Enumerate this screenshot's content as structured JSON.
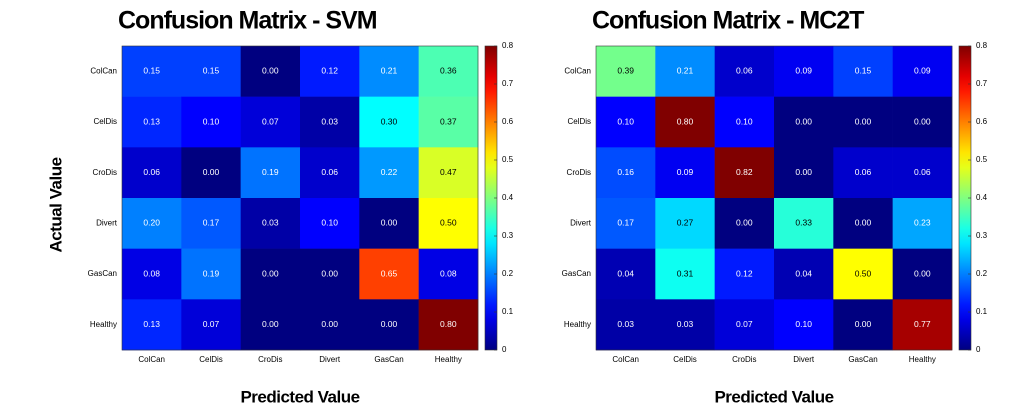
{
  "chart_data": [
    {
      "type": "heatmap",
      "title": "Confusion Matrix - SVM",
      "xlabel": "Predicted Value",
      "ylabel": "Actual Value",
      "x_categories": [
        "ColCan",
        "CelDis",
        "CroDis",
        "Divert",
        "GasCan",
        "Healthy"
      ],
      "y_categories": [
        "ColCan",
        "CelDis",
        "CroDis",
        "Divert",
        "GasCan",
        "Healthy"
      ],
      "values": [
        [
          0.15,
          0.15,
          0,
          0.12,
          0.21,
          0.36
        ],
        [
          0.13,
          0.1,
          0.07,
          0.03,
          0.3,
          0.37
        ],
        [
          0.06,
          0,
          0.19,
          0.06,
          0.22,
          0.47
        ],
        [
          0.2,
          0.17,
          0.03,
          0.1,
          0,
          0.5
        ],
        [
          0.08,
          0.19,
          0,
          0,
          0.65,
          0.08
        ],
        [
          0.13,
          0.07,
          0,
          0,
          0,
          0.8
        ]
      ],
      "value_labels": [
        [
          "0.15",
          "0.15",
          "0.00",
          "0.12",
          "0.21",
          "0.36"
        ],
        [
          "0.13",
          "0.10",
          "0.07",
          "0.03",
          "0.30",
          "0.37"
        ],
        [
          "0.06",
          "0.00",
          "0.19",
          "0.06",
          "0.22",
          "0.47"
        ],
        [
          "0.20",
          "0.17",
          "0.03",
          "0.10",
          "0.00",
          "0.50"
        ],
        [
          "0.08",
          "0.19",
          "0.00",
          "0.00",
          "0.65",
          "0.08"
        ],
        [
          "0.13",
          "0.07",
          "0.00",
          "0.00",
          "0.00",
          "0.80"
        ]
      ],
      "colormap": "jet",
      "clim": [
        0,
        0.8
      ],
      "cticks": [
        0,
        0.1,
        0.2,
        0.3,
        0.4,
        0.5,
        0.6,
        0.7,
        0.8
      ]
    },
    {
      "type": "heatmap",
      "title": "Confusion Matrix - MC2T",
      "xlabel": "Predicted Value",
      "x_categories": [
        "ColCan",
        "CelDis",
        "CroDis",
        "Divert",
        "GasCan",
        "Healthy"
      ],
      "y_categories": [
        "ColCan",
        "CelDis",
        "CroDis",
        "Divert",
        "GasCan",
        "Healthy"
      ],
      "values": [
        [
          0.39,
          0.21,
          0.06,
          0.09,
          0.15,
          0.09
        ],
        [
          0.1,
          0.8,
          0.1,
          0,
          0,
          0
        ],
        [
          0.16,
          0.09,
          0.82,
          0,
          0.06,
          0.06
        ],
        [
          0.17,
          0.27,
          0,
          0.33,
          0,
          0.23
        ],
        [
          0.04,
          0.31,
          0.12,
          0.04,
          0.5,
          0
        ],
        [
          0.03,
          0.03,
          0.07,
          0.1,
          0,
          0.77
        ]
      ],
      "value_labels": [
        [
          "0.39",
          "0.21",
          "0.06",
          "0.09",
          "0.15",
          "0.09"
        ],
        [
          "0.10",
          "0.80",
          "0.10",
          "0.00",
          "0.00",
          "0.00"
        ],
        [
          "0.16",
          "0.09",
          "0.82",
          "0.00",
          "0.06",
          "0.06"
        ],
        [
          "0.17",
          "0.27",
          "0.00",
          "0.33",
          "0.00",
          "0.23"
        ],
        [
          "0.04",
          "0.31",
          "0.12",
          "0.04",
          "0.50",
          "0.00"
        ],
        [
          "0.03",
          "0.03",
          "0.07",
          "0.10",
          "0.00",
          "0.77"
        ]
      ],
      "colormap": "jet",
      "clim": [
        0,
        0.8
      ],
      "cticks": [
        0,
        0.1,
        0.2,
        0.3,
        0.4,
        0.5,
        0.6,
        0.7,
        0.8
      ]
    }
  ]
}
